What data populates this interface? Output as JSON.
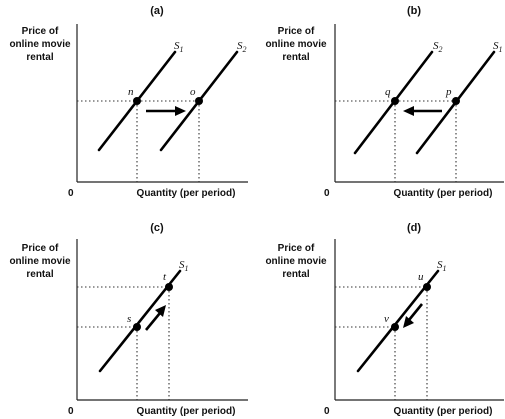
{
  "panels": [
    {
      "id": "a",
      "title": "(a)",
      "ylabel": [
        "Price of",
        "online movie",
        "rental"
      ],
      "xlabel": "Quantity (per period)",
      "origin": "0",
      "curves": [
        {
          "name": "S",
          "sub": "1"
        },
        {
          "name": "S",
          "sub": "2"
        }
      ],
      "points": [
        "n",
        "o"
      ]
    },
    {
      "id": "b",
      "title": "(b)",
      "ylabel": [
        "Price of",
        "online movie",
        "rental"
      ],
      "xlabel": "Quantity (per period)",
      "origin": "0",
      "curves": [
        {
          "name": "S",
          "sub": "2"
        },
        {
          "name": "S",
          "sub": "1"
        }
      ],
      "points": [
        "q",
        "p"
      ]
    },
    {
      "id": "c",
      "title": "(c)",
      "ylabel": [
        "Price of",
        "online movie",
        "rental"
      ],
      "xlabel": "Quantity (per period)",
      "origin": "0",
      "curves": [
        {
          "name": "S",
          "sub": "1"
        }
      ],
      "points": [
        "t",
        "s"
      ]
    },
    {
      "id": "d",
      "title": "(d)",
      "ylabel": [
        "Price of",
        "online movie",
        "rental"
      ],
      "xlabel": "Quantity (per period)",
      "origin": "0",
      "curves": [
        {
          "name": "S",
          "sub": "1"
        }
      ],
      "points": [
        "u",
        "v"
      ]
    }
  ]
}
